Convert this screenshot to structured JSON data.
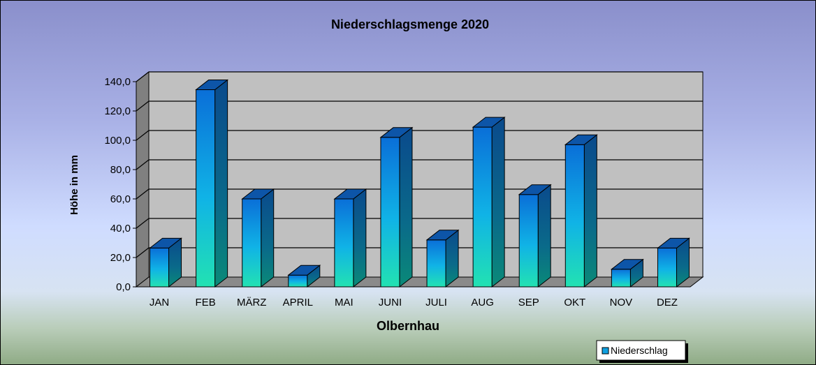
{
  "chart_data": {
    "type": "bar",
    "title": "Niederschlagsmenge  2020",
    "xlabel": "Olbernhau",
    "ylabel": "Höhe in mm",
    "categories": [
      "JAN",
      "FEB",
      "MÄRZ",
      "APRIL",
      "MAI",
      "JUNI",
      "JULI",
      "AUG",
      "SEP",
      "OKT",
      "NOV",
      "DEZ"
    ],
    "series": [
      {
        "name": "Niederschlag",
        "values": [
          26.5,
          134.5,
          60,
          8,
          60,
          102,
          32,
          109,
          63,
          97,
          12,
          26.5
        ]
      }
    ],
    "ylim": [
      0,
      140
    ],
    "yticks": [
      "0,0",
      "20,0",
      "40,0",
      "60,0",
      "80,0",
      "100,0",
      "120,0",
      "140,0"
    ],
    "grid": true,
    "legend_position": "bottom-right",
    "colors": {
      "bar_top": "#0a6fd8",
      "bar_bottom": "#1fe0b8",
      "bar_side": "#0a4a8c",
      "bar_cap": "#0d55a8",
      "plot_back": "#c0c0c0",
      "plot_wall": "#808080"
    }
  }
}
